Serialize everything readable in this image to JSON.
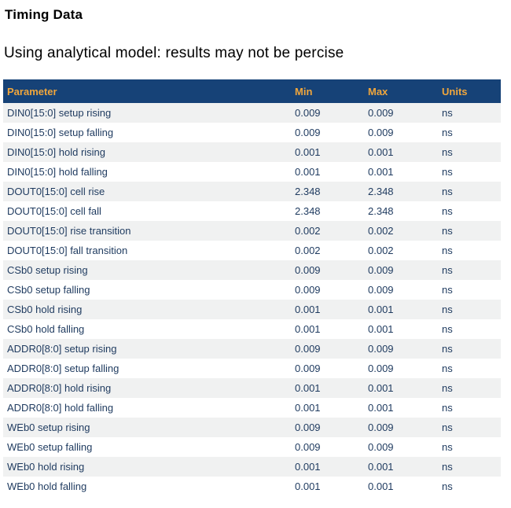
{
  "page": {
    "title": "Timing Data",
    "subtitle": "Using analytical model: results may not be percise"
  },
  "table": {
    "columns": [
      "Parameter",
      "Min",
      "Max",
      "Units"
    ],
    "rows": [
      {
        "parameter": "DIN0[15:0] setup rising",
        "min": "0.009",
        "max": "0.009",
        "units": "ns"
      },
      {
        "parameter": "DIN0[15:0] setup falling",
        "min": "0.009",
        "max": "0.009",
        "units": "ns"
      },
      {
        "parameter": "DIN0[15:0] hold rising",
        "min": "0.001",
        "max": "0.001",
        "units": "ns"
      },
      {
        "parameter": "DIN0[15:0] hold falling",
        "min": "0.001",
        "max": "0.001",
        "units": "ns"
      },
      {
        "parameter": "DOUT0[15:0] cell rise",
        "min": "2.348",
        "max": "2.348",
        "units": "ns"
      },
      {
        "parameter": "DOUT0[15:0] cell fall",
        "min": "2.348",
        "max": "2.348",
        "units": "ns"
      },
      {
        "parameter": "DOUT0[15:0] rise transition",
        "min": "0.002",
        "max": "0.002",
        "units": "ns"
      },
      {
        "parameter": "DOUT0[15:0] fall transition",
        "min": "0.002",
        "max": "0.002",
        "units": "ns"
      },
      {
        "parameter": "CSb0 setup rising",
        "min": "0.009",
        "max": "0.009",
        "units": "ns"
      },
      {
        "parameter": "CSb0 setup falling",
        "min": "0.009",
        "max": "0.009",
        "units": "ns"
      },
      {
        "parameter": "CSb0 hold rising",
        "min": "0.001",
        "max": "0.001",
        "units": "ns"
      },
      {
        "parameter": "CSb0 hold falling",
        "min": "0.001",
        "max": "0.001",
        "units": "ns"
      },
      {
        "parameter": "ADDR0[8:0] setup rising",
        "min": "0.009",
        "max": "0.009",
        "units": "ns"
      },
      {
        "parameter": "ADDR0[8:0] setup falling",
        "min": "0.009",
        "max": "0.009",
        "units": "ns"
      },
      {
        "parameter": "ADDR0[8:0] hold rising",
        "min": "0.001",
        "max": "0.001",
        "units": "ns"
      },
      {
        "parameter": "ADDR0[8:0] hold falling",
        "min": "0.001",
        "max": "0.001",
        "units": "ns"
      },
      {
        "parameter": "WEb0 setup rising",
        "min": "0.009",
        "max": "0.009",
        "units": "ns"
      },
      {
        "parameter": "WEb0 setup falling",
        "min": "0.009",
        "max": "0.009",
        "units": "ns"
      },
      {
        "parameter": "WEb0 hold rising",
        "min": "0.001",
        "max": "0.001",
        "units": "ns"
      },
      {
        "parameter": "WEb0 hold falling",
        "min": "0.001",
        "max": "0.001",
        "units": "ns"
      }
    ]
  },
  "colors": {
    "header_bg": "#164277",
    "header_text": "#f0a63c",
    "row_alt_bg": "#f0f1f1",
    "row_bg": "#ffffff",
    "row_text": "#1e3a5f",
    "title_text": "#000000"
  }
}
